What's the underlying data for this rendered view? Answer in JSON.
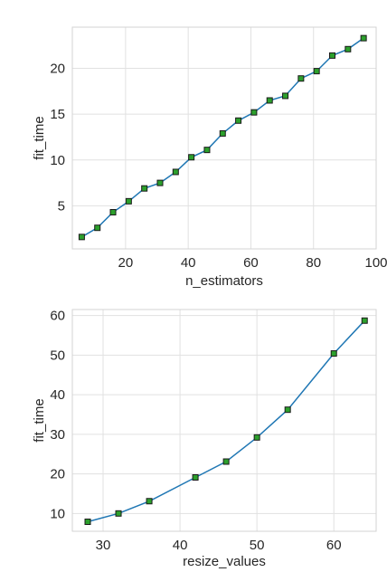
{
  "chart_data": [
    {
      "type": "line",
      "xlabel": "n_estimators",
      "ylabel": "fit_time",
      "xlim": [
        3,
        100
      ],
      "ylim": [
        0.3,
        24.5
      ],
      "xticks": [
        20,
        40,
        60,
        80,
        100
      ],
      "yticks": [
        5,
        10,
        15,
        20
      ],
      "grid": true,
      "x": [
        6,
        11,
        16,
        21,
        26,
        31,
        36,
        41,
        46,
        51,
        56,
        61,
        66,
        71,
        76,
        81,
        86,
        91,
        96
      ],
      "series": [
        {
          "values": [
            1.6,
            2.6,
            4.3,
            5.5,
            6.9,
            7.5,
            8.7,
            10.3,
            11.1,
            12.9,
            14.3,
            15.2,
            16.5,
            17.0,
            18.9,
            19.7,
            21.4,
            22.1,
            23.3
          ]
        }
      ],
      "line_color": "#1f77b4",
      "marker_color": "#2ca02c",
      "marker_edge_color": "#1a1a1a"
    },
    {
      "type": "line",
      "xlabel": "resize_values",
      "ylabel": "fit_time",
      "xlim": [
        26,
        65.5
      ],
      "ylim": [
        5.5,
        61.5
      ],
      "xticks": [
        30,
        40,
        50,
        60
      ],
      "yticks": [
        10,
        20,
        30,
        40,
        50,
        60
      ],
      "grid": true,
      "x": [
        28,
        32,
        36,
        42,
        46,
        50,
        54,
        60,
        64
      ],
      "series": [
        {
          "values": [
            7.9,
            10.0,
            13.1,
            19.1,
            23.1,
            29.2,
            36.2,
            50.4,
            58.7
          ]
        }
      ],
      "line_color": "#1f77b4",
      "marker_color": "#2ca02c",
      "marker_edge_color": "#1a1a1a"
    }
  ]
}
